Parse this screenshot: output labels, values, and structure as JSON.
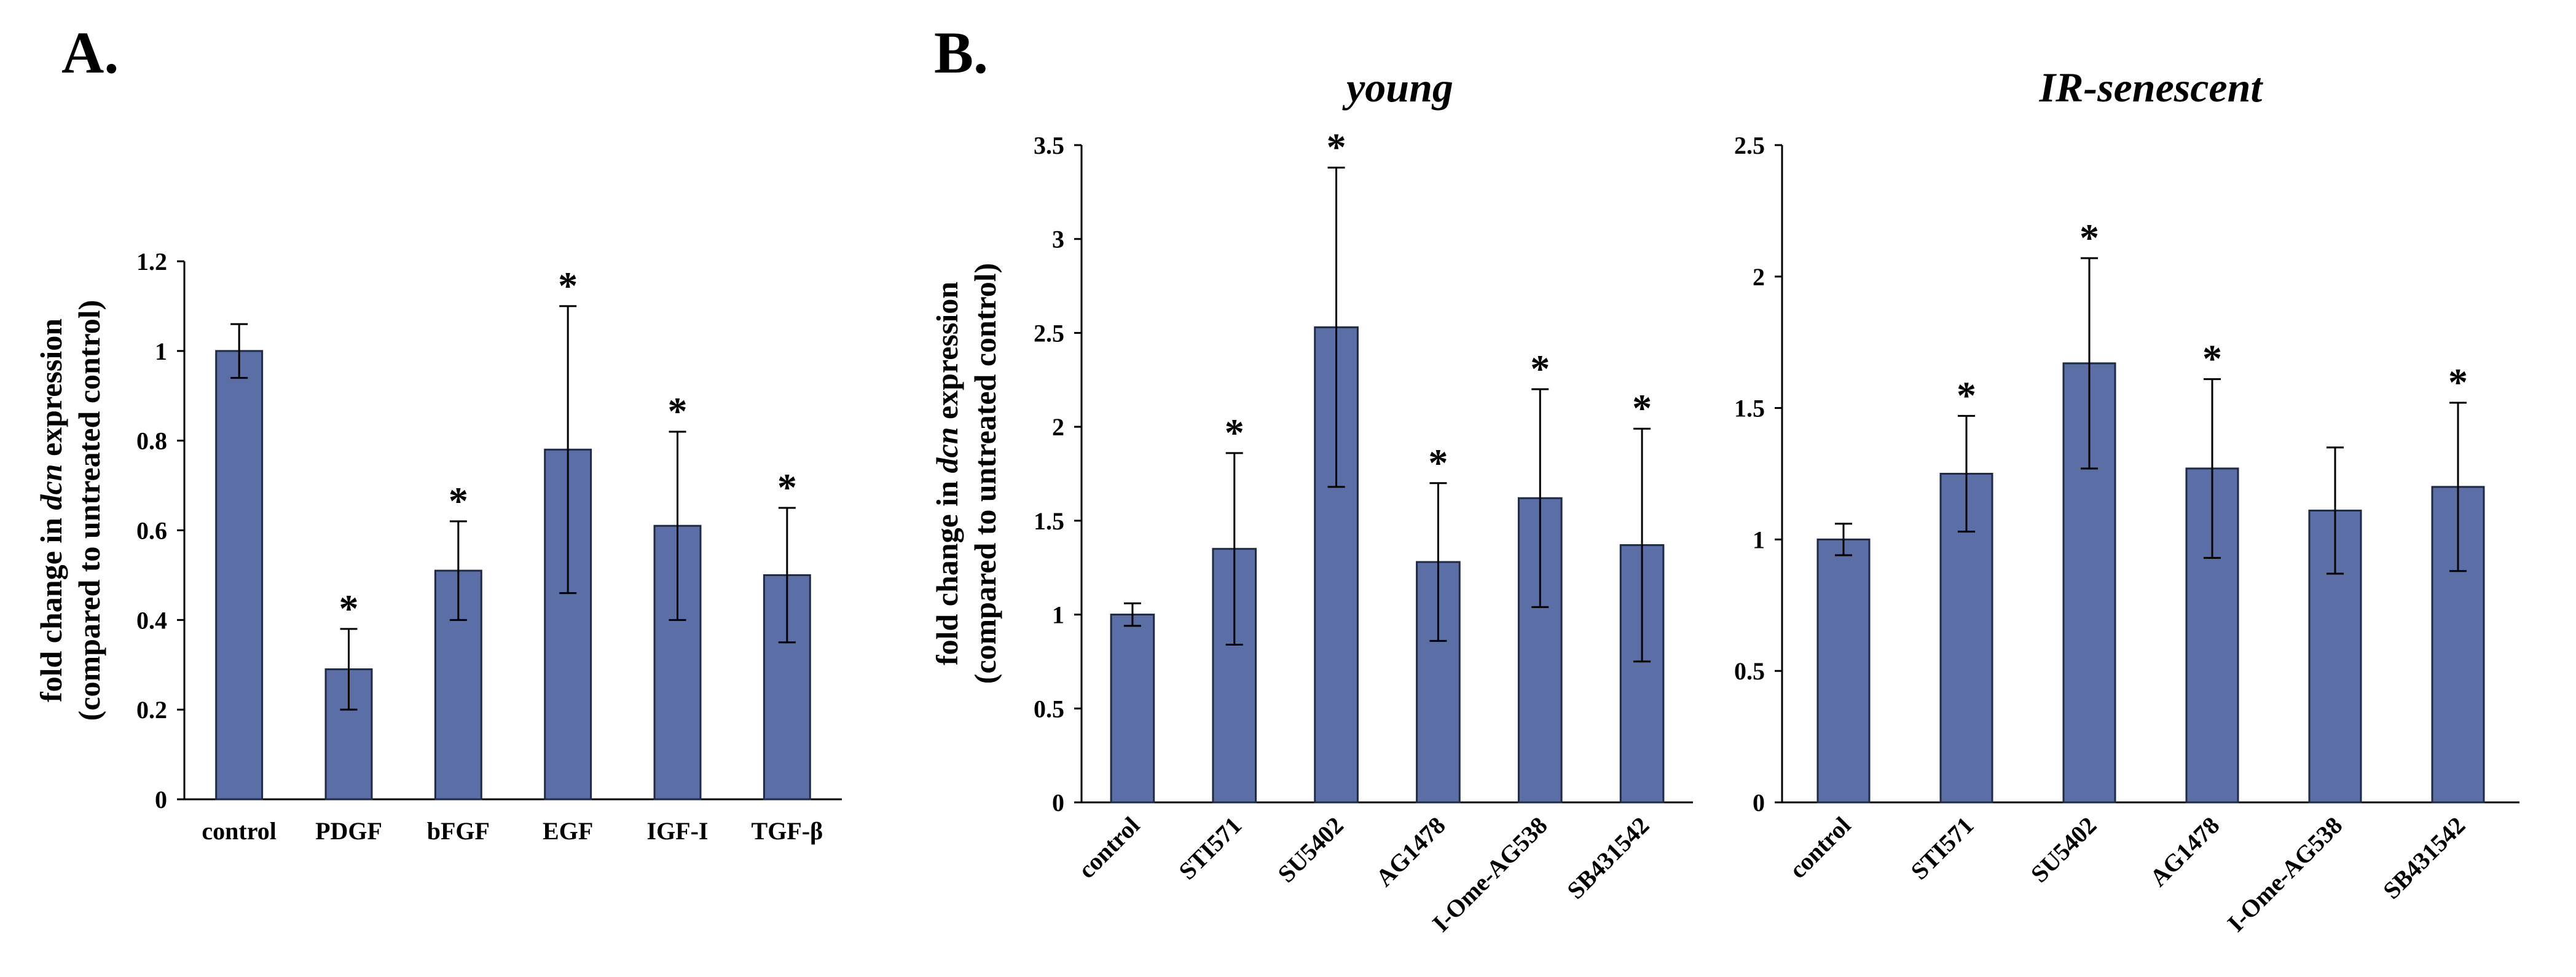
{
  "panels": {
    "a_label": "A.",
    "b_label": "B."
  },
  "ylabel": {
    "line1_prefix": "fold change in ",
    "line1_italic": "dcn",
    "line1_suffix": " expression",
    "line2": "(compared to untreated control)"
  },
  "colors": {
    "bar": "#5b6fa6",
    "bar_stroke": "#1f2a44",
    "axis": "#000000"
  },
  "chart_data": [
    {
      "id": "A",
      "type": "bar",
      "title": "",
      "categories": [
        "control",
        "PDGF",
        "bFGF",
        "EGF",
        "IGF-I",
        "TGF-β"
      ],
      "values": [
        1.0,
        0.29,
        0.51,
        0.78,
        0.61,
        0.5
      ],
      "errors": [
        0.06,
        0.09,
        0.11,
        0.32,
        0.21,
        0.15
      ],
      "significant": [
        false,
        true,
        true,
        true,
        true,
        true
      ],
      "ylim": [
        0,
        1.2
      ],
      "yticks": [
        "0",
        "0.2",
        "0.4",
        "0.6",
        "0.8",
        "1",
        "1.2"
      ],
      "ytick_values": [
        0,
        0.2,
        0.4,
        0.6,
        0.8,
        1.0,
        1.2
      ],
      "xlabel": "",
      "ylabel": "fold change in dcn expression (compared to untreated control)",
      "rotated_labels": false,
      "star": "*"
    },
    {
      "id": "B-young",
      "type": "bar",
      "title": "young",
      "categories": [
        "control",
        "STI571",
        "SU5402",
        "AG1478",
        "I-Ome-AG538",
        "SB431542"
      ],
      "values": [
        1.0,
        1.35,
        2.53,
        1.28,
        1.62,
        1.37
      ],
      "errors": [
        0.06,
        0.51,
        0.85,
        0.42,
        0.58,
        0.62
      ],
      "significant": [
        false,
        true,
        true,
        true,
        true,
        true
      ],
      "ylim": [
        0,
        3.5
      ],
      "yticks": [
        "0",
        "0.5",
        "1",
        "1.5",
        "2",
        "2.5",
        "3",
        "3.5"
      ],
      "ytick_values": [
        0,
        0.5,
        1.0,
        1.5,
        2.0,
        2.5,
        3.0,
        3.5
      ],
      "xlabel": "",
      "ylabel": "fold change in dcn expression (compared to untreated control)",
      "rotated_labels": true,
      "star": "*"
    },
    {
      "id": "B-senescent",
      "type": "bar",
      "title": "IR-senescent",
      "categories": [
        "control",
        "STI571",
        "SU5402",
        "AG1478",
        "I-Ome-AG538",
        "SB431542"
      ],
      "values": [
        1.0,
        1.25,
        1.67,
        1.27,
        1.11,
        1.2
      ],
      "errors": [
        0.06,
        0.22,
        0.4,
        0.34,
        0.24,
        0.32
      ],
      "significant": [
        false,
        true,
        true,
        true,
        false,
        true
      ],
      "ylim": [
        0,
        2.5
      ],
      "yticks": [
        "0",
        "0.5",
        "1",
        "1.5",
        "2",
        "2.5"
      ],
      "ytick_values": [
        0,
        0.5,
        1.0,
        1.5,
        2.0,
        2.5
      ],
      "xlabel": "",
      "ylabel": "",
      "rotated_labels": true,
      "star": "*"
    }
  ]
}
